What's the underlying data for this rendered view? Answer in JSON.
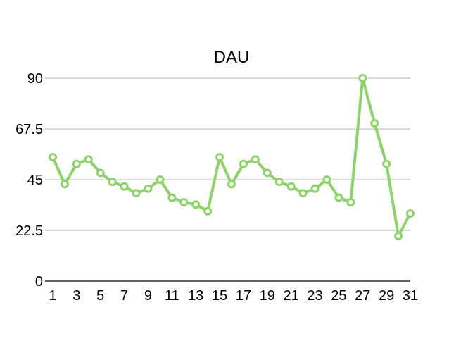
{
  "chart_data": {
    "type": "line",
    "title": "DAU",
    "xlabel": "",
    "ylabel": "",
    "x": [
      1,
      2,
      3,
      4,
      5,
      6,
      7,
      8,
      9,
      10,
      11,
      12,
      13,
      14,
      15,
      16,
      17,
      18,
      19,
      20,
      21,
      22,
      23,
      24,
      25,
      26,
      27,
      28,
      29,
      30,
      31
    ],
    "x_tick_labels": [
      "1",
      "3",
      "5",
      "7",
      "9",
      "11",
      "13",
      "15",
      "17",
      "19",
      "21",
      "23",
      "25",
      "27",
      "29",
      "31"
    ],
    "y_tick_labels": [
      "0",
      "22.5",
      "45",
      "67.5",
      "90"
    ],
    "y_ticks": [
      0,
      22.5,
      45,
      67.5,
      90
    ],
    "ylim": [
      0,
      90
    ],
    "xlim": [
      1,
      31
    ],
    "grid": true,
    "legend": "none",
    "series": [
      {
        "values": [
          55,
          43,
          52,
          54,
          48,
          44,
          42,
          39,
          41,
          45,
          37,
          35,
          34,
          31,
          55,
          43,
          52,
          54,
          48,
          44,
          42,
          39,
          41,
          45,
          37,
          35,
          90,
          70,
          52,
          20,
          30
        ],
        "color": "#8fd16b"
      }
    ],
    "colors": {
      "line": "#8fd16b",
      "grid": "#b3b3b3",
      "axis": "#000000"
    }
  }
}
